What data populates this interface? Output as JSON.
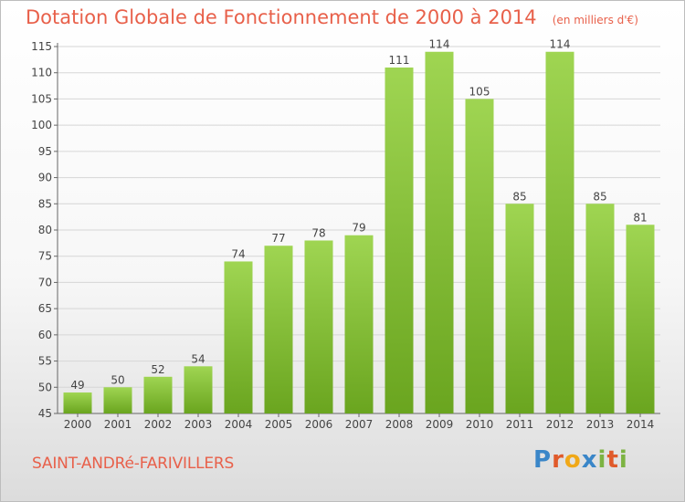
{
  "header": {
    "title": "Dotation Globale de Fonctionnement de 2000 à 2014",
    "unit": "(en milliers d'€)"
  },
  "footer": {
    "commune": "SAINT-ANDRé-FARIVILLERS",
    "logo_letters": [
      {
        "char": "P",
        "color": "#3a86c8"
      },
      {
        "char": "r",
        "color": "#e05a2a"
      },
      {
        "char": "o",
        "color": "#f0a818"
      },
      {
        "char": "x",
        "color": "#3a86c8"
      },
      {
        "char": "i",
        "color": "#7cb342"
      },
      {
        "char": "t",
        "color": "#e05a2a"
      },
      {
        "char": "i",
        "color": "#7cb342"
      }
    ]
  },
  "chart_data": {
    "type": "bar",
    "categories": [
      "2000",
      "2001",
      "2002",
      "2003",
      "2004",
      "2005",
      "2006",
      "2007",
      "2008",
      "2009",
      "2010",
      "2011",
      "2012",
      "2013",
      "2014"
    ],
    "values": [
      49,
      50,
      52,
      54,
      74,
      77,
      78,
      79,
      111,
      114,
      105,
      85,
      114,
      85,
      81
    ],
    "ylim": [
      45,
      115
    ],
    "yticks": [
      45,
      50,
      55,
      60,
      65,
      70,
      75,
      80,
      85,
      90,
      95,
      100,
      105,
      110,
      115
    ],
    "grid": true,
    "bar_color_light": "#9fd552",
    "bar_color_dark": "#6aa51f",
    "title": "Dotation Globale de Fonctionnement de 2000 à 2014",
    "xlabel": "",
    "ylabel": ""
  }
}
